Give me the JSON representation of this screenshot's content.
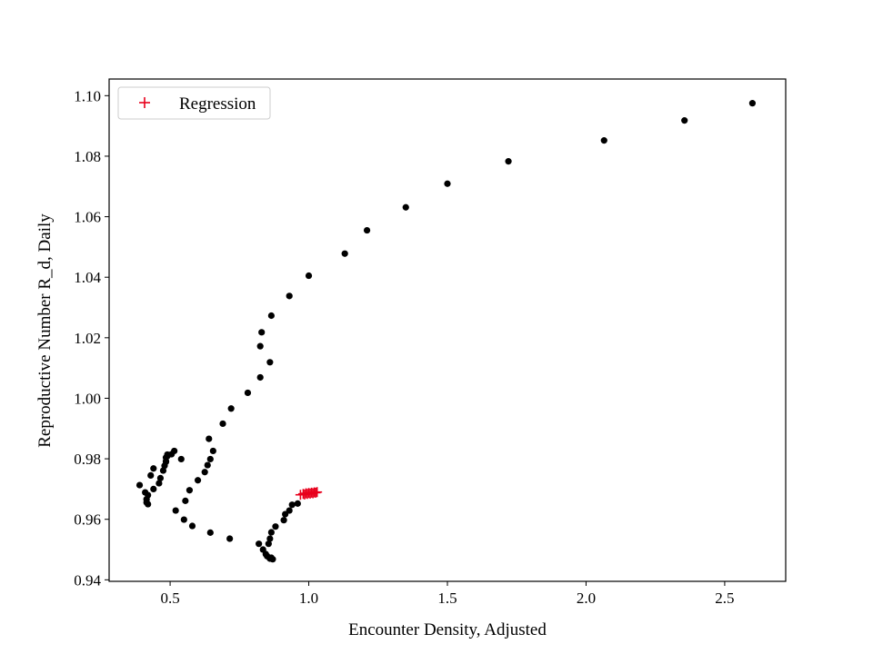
{
  "chart_data": {
    "type": "scatter",
    "title": "",
    "xlabel": "Encounter Density, Adjusted",
    "ylabel": "Reproductive Number R_d, Daily",
    "xlim": [
      0.28,
      2.72
    ],
    "ylim": [
      0.9395,
      1.1055
    ],
    "xticks": [
      0.5,
      1.0,
      1.5,
      2.0,
      2.5
    ],
    "xtick_labels": [
      "0.5",
      "1.0",
      "1.5",
      "2.0",
      "2.5"
    ],
    "yticks": [
      0.94,
      0.96,
      0.98,
      1.0,
      1.02,
      1.04,
      1.06,
      1.08,
      1.1
    ],
    "ytick_labels": [
      "0.94",
      "0.96",
      "0.98",
      "1.00",
      "1.02",
      "1.04",
      "1.06",
      "1.08",
      "1.10"
    ],
    "grid": false,
    "legend_position": "upper-left",
    "series": [
      {
        "marker": "dot",
        "color": "#000000",
        "x": [
          2.6,
          2.355,
          2.065,
          1.72,
          1.5,
          1.35,
          1.21,
          1.13,
          1.0,
          0.93,
          0.865,
          0.83,
          0.825,
          0.86,
          0.825,
          0.78,
          0.72,
          0.69,
          0.64,
          0.655,
          0.645,
          0.635,
          0.625,
          0.6,
          0.57,
          0.555,
          0.52,
          0.515,
          0.49,
          0.485,
          0.485,
          0.48,
          0.475,
          0.465,
          0.46,
          0.44,
          0.42,
          0.415,
          0.415,
          0.42,
          0.41,
          0.39,
          0.43,
          0.44,
          0.485,
          0.49,
          0.505,
          0.54,
          0.55,
          0.58,
          0.645,
          0.715,
          0.82,
          0.835,
          0.845,
          0.85,
          0.86,
          0.87,
          0.865,
          0.855,
          0.86,
          0.865,
          0.88,
          0.91,
          0.915,
          0.93,
          0.94,
          0.96
        ],
        "y": [
          1.0975,
          1.0918,
          1.0852,
          1.0783,
          1.0709,
          1.0631,
          1.0555,
          1.0478,
          1.0405,
          1.0338,
          1.0273,
          1.0218,
          1.0172,
          1.0119,
          1.0069,
          1.0018,
          0.9966,
          0.9916,
          0.9866,
          0.9826,
          0.9799,
          0.9779,
          0.9756,
          0.9729,
          0.9696,
          0.9661,
          0.9629,
          0.9826,
          0.9814,
          0.9804,
          0.9792,
          0.9777,
          0.9761,
          0.9736,
          0.9719,
          0.97,
          0.968,
          0.9666,
          0.9656,
          0.965,
          0.9689,
          0.9713,
          0.9745,
          0.9768,
          0.979,
          0.9809,
          0.9815,
          0.9799,
          0.9599,
          0.9578,
          0.9556,
          0.9536,
          0.9519,
          0.95,
          0.9485,
          0.9478,
          0.947,
          0.9468,
          0.9473,
          0.9519,
          0.9536,
          0.9557,
          0.9576,
          0.9597,
          0.9617,
          0.9629,
          0.9648,
          0.9652
        ]
      },
      {
        "name": "Regression",
        "marker": "plus",
        "color": "#e8001c",
        "x": [
          0.97,
          0.98,
          0.985,
          0.99,
          0.995,
          1.0,
          1.005,
          1.01,
          1.015,
          1.02,
          1.025,
          1.03
        ],
        "y": [
          0.9681,
          0.9684,
          0.9682,
          0.9686,
          0.9684,
          0.9687,
          0.9685,
          0.9688,
          0.9686,
          0.9689,
          0.9688,
          0.969
        ]
      }
    ]
  }
}
